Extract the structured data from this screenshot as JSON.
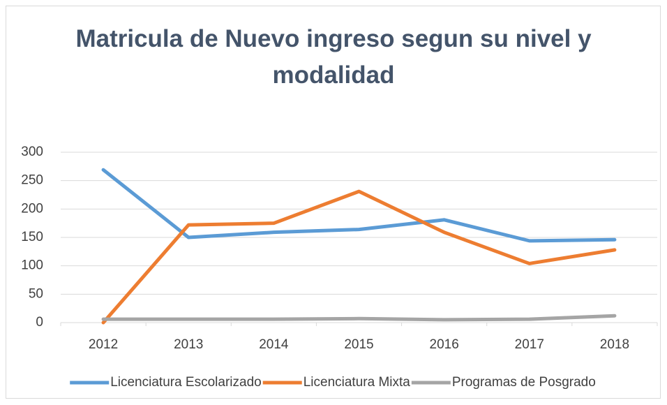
{
  "chart_data": {
    "type": "line",
    "title": "Matricula de Nuevo ingreso segun su nivel y modalidad",
    "categories": [
      "2012",
      "2013",
      "2014",
      "2015",
      "2016",
      "2017",
      "2018"
    ],
    "series": [
      {
        "name": "Licenciatura Escolarizado",
        "color": "#5b9bd5",
        "values": [
          269,
          150,
          159,
          164,
          181,
          144,
          146
        ]
      },
      {
        "name": "Licenciatura Mixta",
        "color": "#ed7d31",
        "values": [
          0,
          172,
          175,
          231,
          159,
          104,
          128
        ]
      },
      {
        "name": "Programas de Posgrado",
        "color": "#a5a5a5",
        "values": [
          6,
          6,
          6,
          7,
          5,
          6,
          12
        ]
      }
    ],
    "ylim": [
      0,
      300
    ],
    "yticks": [
      0,
      50,
      100,
      150,
      200,
      250,
      300
    ],
    "grid": true,
    "legend": "bottom"
  }
}
